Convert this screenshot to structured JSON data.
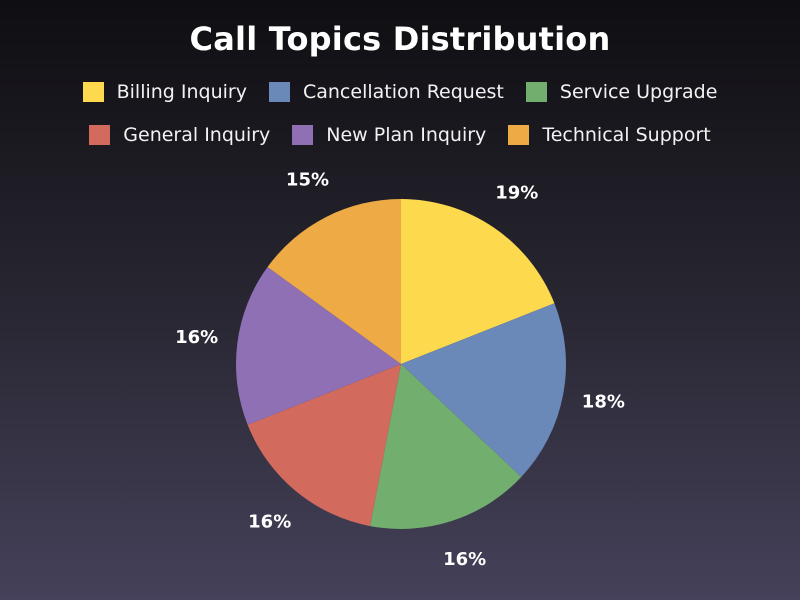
{
  "chart_data": {
    "type": "pie",
    "title": "Call Topics Distribution",
    "legend_position": "top",
    "start_angle_deg": 0,
    "direction": "clockwise",
    "slices": [
      {
        "label": "Billing Inquiry",
        "value": 19,
        "display": "19%",
        "color": "#fdd94d"
      },
      {
        "label": "Cancellation Request",
        "value": 18,
        "display": "18%",
        "color": "#6a88b8"
      },
      {
        "label": "Service Upgrade",
        "value": 16,
        "display": "16%",
        "color": "#72ae6e"
      },
      {
        "label": "General Inquiry",
        "value": 16,
        "display": "16%",
        "color": "#d36a5e"
      },
      {
        "label": "New Plan Inquiry",
        "value": 16,
        "display": "16%",
        "color": "#8f70b5"
      },
      {
        "label": "Technical Support",
        "value": 15,
        "display": "15%",
        "color": "#eeaa45"
      }
    ]
  }
}
